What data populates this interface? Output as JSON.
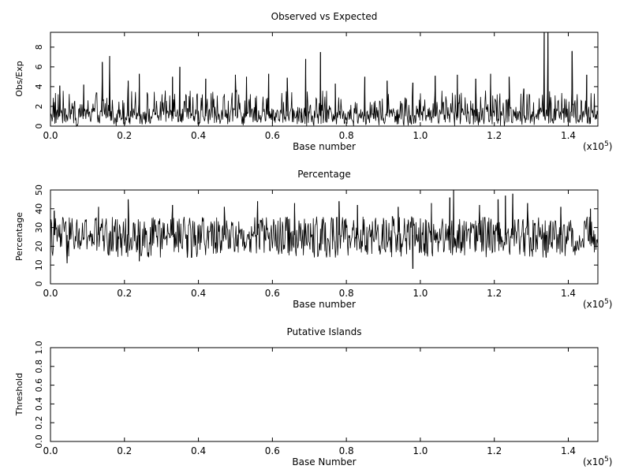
{
  "chart_data": [
    {
      "type": "line",
      "title": "Observed vs Expected",
      "xlabel": "Base number",
      "ylabel": "Obs/Exp",
      "xlim": [
        0,
        148000
      ],
      "ylim": [
        0,
        9.5
      ],
      "x_ticks": [
        0.0,
        0.2,
        0.4,
        0.6,
        0.8,
        1.0,
        1.2,
        1.4
      ],
      "x_tick_labels": [
        "0.0",
        "0.2",
        "0.4",
        "0.6",
        "0.8",
        "1.0",
        "1.2",
        "1.4"
      ],
      "x_multiplier_base": "(x10",
      "x_multiplier_exp": "5",
      "x_multiplier_close": ")",
      "y_ticks": [
        0,
        2,
        4,
        6,
        8
      ],
      "y_tick_labels": [
        "0",
        "2",
        "4",
        "6",
        "8"
      ],
      "series": [
        {
          "color": "#000000",
          "baseline": 1.0,
          "noise_range": [
            0,
            3.6
          ],
          "x": [
            2500,
            9000,
            14000,
            16000,
            21000,
            24000,
            33000,
            35000,
            42000,
            50000,
            53000,
            59000,
            64000,
            69000,
            73000,
            77000,
            85000,
            91000,
            98000,
            104000,
            110000,
            115000,
            119000,
            124000,
            128000,
            133500,
            134500,
            141000,
            145000
          ],
          "y": [
            4.1,
            4.2,
            6.5,
            7.1,
            4.6,
            5.3,
            5.0,
            6.0,
            4.8,
            5.2,
            5.0,
            5.3,
            4.9,
            6.8,
            7.5,
            4.3,
            5.0,
            4.6,
            4.4,
            5.1,
            5.2,
            4.8,
            5.3,
            5.0,
            3.8,
            9.5,
            9.5,
            7.6,
            5.2
          ]
        }
      ]
    },
    {
      "type": "line",
      "title": "Percentage",
      "xlabel": "Base number",
      "ylabel": "Percentage",
      "xlim": [
        0,
        148000
      ],
      "ylim": [
        0,
        50
      ],
      "x_ticks": [
        0.0,
        0.2,
        0.4,
        0.6,
        0.8,
        1.0,
        1.2,
        1.4
      ],
      "x_tick_labels": [
        "0.0",
        "0.2",
        "0.4",
        "0.6",
        "0.8",
        "1.0",
        "1.2",
        "1.4"
      ],
      "x_multiplier_base": "(x10",
      "x_multiplier_exp": "5",
      "x_multiplier_close": ")",
      "y_ticks": [
        0,
        10,
        20,
        30,
        40,
        50
      ],
      "y_tick_labels": [
        "0",
        "10",
        "20",
        "30",
        "40",
        "50"
      ],
      "series": [
        {
          "color": "#000000",
          "baseline": 26,
          "noise_range": [
            14,
            36
          ],
          "x": [
            1000,
            4500,
            13000,
            21000,
            24000,
            33000,
            37000,
            47000,
            56000,
            66000,
            78000,
            83000,
            94000,
            98000,
            103000,
            108000,
            109000,
            116000,
            121000,
            123000,
            125000,
            129000,
            134000,
            138000,
            146000
          ],
          "y": [
            39,
            11,
            41,
            45,
            12,
            42,
            14,
            41,
            44,
            43,
            44,
            42,
            41,
            8,
            43,
            46,
            50,
            42,
            45,
            47,
            48,
            43,
            14,
            41,
            40
          ]
        }
      ]
    },
    {
      "type": "line",
      "title": "Putative Islands",
      "xlabel": "Base Number",
      "ylabel": "Threshold",
      "xlim": [
        0,
        148000
      ],
      "ylim": [
        0,
        1.0
      ],
      "x_ticks": [
        0.0,
        0.2,
        0.4,
        0.6,
        0.8,
        1.0,
        1.2,
        1.4
      ],
      "x_tick_labels": [
        "0.0",
        "0.2",
        "0.4",
        "0.6",
        "0.8",
        "1.0",
        "1.2",
        "1.4"
      ],
      "x_multiplier_base": "(x10",
      "x_multiplier_exp": "5",
      "x_multiplier_close": ")",
      "y_ticks": [
        0.0,
        0.2,
        0.4,
        0.6,
        0.8,
        1.0
      ],
      "y_tick_labels": [
        "0.0",
        "0.2",
        "0.4",
        "0.6",
        "0.8",
        "1.0"
      ],
      "series": []
    }
  ]
}
